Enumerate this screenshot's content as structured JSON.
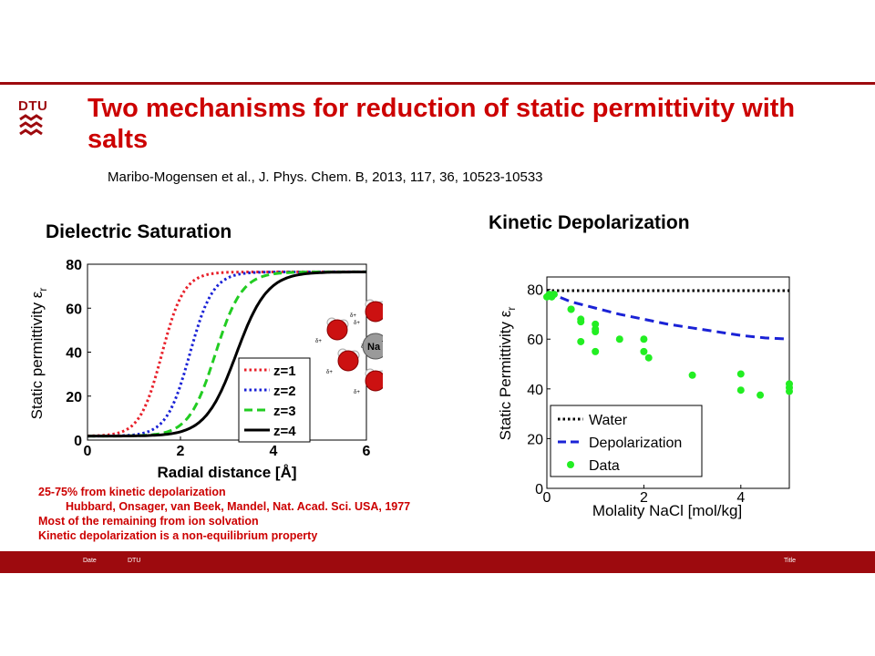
{
  "header": {
    "logo_text": "DTU",
    "title": "Two mechanisms for reduction of static permittivity with salts",
    "citation": "Maribo-Mogensen et al., J. Phys. Chem. B, 2013, 117,  36, 10523-10533"
  },
  "sections": {
    "left_heading": "Dielectric Saturation",
    "right_heading": "Kinetic Depolarization"
  },
  "colors": {
    "brand": "#9d0a0e",
    "title": "#cc0000",
    "z1": "#e8202a",
    "z2": "#1a22d6",
    "z3": "#22cc22",
    "z4": "#000000",
    "depol": "#1a22d6",
    "data": "#22ee22"
  },
  "chart_data": [
    {
      "type": "line",
      "xlabel": "Radial distance [Å]",
      "ylabel": "Static permittivity ε",
      "ylabel_sub": "r",
      "xlim": [
        0,
        6
      ],
      "ylim": [
        0,
        80
      ],
      "xticks": [
        "0",
        "2",
        "4",
        "6"
      ],
      "yticks": [
        "0",
        "20",
        "40",
        "60",
        "80"
      ],
      "legend_position": "lower-right",
      "ion_label": "Na",
      "ion_charge": "+",
      "partial_charge": "δ+",
      "series": [
        {
          "name": "z=1",
          "style": "dotted",
          "midpoint": 1.6,
          "steepness": 4.2
        },
        {
          "name": "z=2",
          "style": "dotted",
          "midpoint": 2.2,
          "steepness": 4.0
        },
        {
          "name": "z=3",
          "style": "dashed",
          "midpoint": 2.75,
          "steepness": 3.5
        },
        {
          "name": "z=4",
          "style": "solid",
          "midpoint": 3.2,
          "steepness": 3.0
        }
      ]
    },
    {
      "type": "line",
      "xlabel": "Molality NaCl [mol/kg]",
      "ylabel": "Static Permittivity ε",
      "ylabel_sub": "r",
      "xlim": [
        0,
        5
      ],
      "ylim": [
        0,
        85
      ],
      "xticks": [
        "0",
        "2",
        "4"
      ],
      "yticks": [
        "0",
        "20",
        "40",
        "60",
        "80"
      ],
      "legend_position": "lower-left",
      "series": [
        {
          "name": "Water",
          "style": "dotted",
          "x": [
            0,
            5
          ],
          "y": [
            79.5,
            79.5
          ]
        },
        {
          "name": "Depolarization",
          "style": "dashed",
          "x": [
            0,
            0.5,
            1,
            1.5,
            2,
            2.5,
            3,
            3.5,
            4,
            4.5,
            5
          ],
          "y": [
            79,
            75,
            72.5,
            70,
            68,
            66,
            64.5,
            63,
            61.5,
            60.5,
            60
          ]
        },
        {
          "name": "Data",
          "style": "points",
          "x": [
            0,
            0.05,
            0.1,
            0.15,
            0.5,
            0.5,
            0.7,
            0.7,
            0.7,
            1,
            1,
            1,
            1,
            1.5,
            2,
            2,
            2.1,
            3,
            4,
            4,
            4.4,
            5,
            5,
            5
          ],
          "y": [
            77,
            78,
            77,
            78,
            72,
            72,
            68,
            67,
            59,
            66,
            64,
            63,
            55,
            60,
            60,
            55,
            52.5,
            45.5,
            46,
            39.5,
            37.5,
            42,
            40.5,
            39
          ]
        }
      ]
    }
  ],
  "notes": [
    "25-75% from kinetic depolarization",
    "Hubbard, Onsager, van Beek, Mandel, Nat. Acad. Sci. USA, 1977",
    "Most of the remaining from ion solvation",
    "Kinetic depolarization is a non-equilibrium property"
  ],
  "footer": {
    "date": "Date",
    "org": "DTU",
    "title": "Title"
  }
}
